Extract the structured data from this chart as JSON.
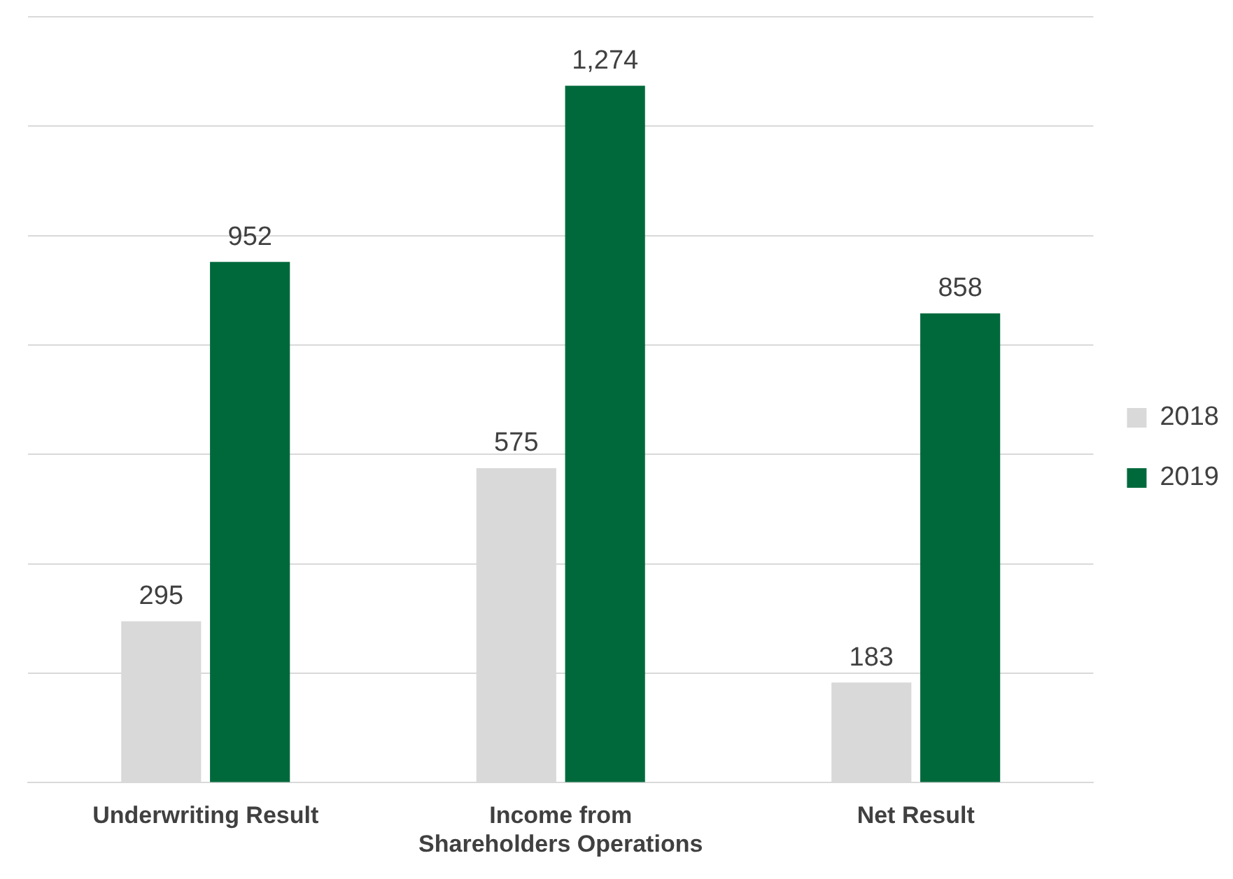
{
  "chart_data": {
    "type": "bar",
    "categories": [
      "Underwriting Result",
      "Income from Shareholders Operations",
      "Net Result"
    ],
    "series": [
      {
        "name": "2018",
        "color": "#d9d9d9",
        "values": [
          295,
          575,
          183
        ],
        "value_labels": [
          "295",
          "575",
          "183"
        ]
      },
      {
        "name": "2019",
        "color": "#00693c",
        "values": [
          952,
          1274,
          858
        ],
        "value_labels": [
          "952",
          "1,274",
          "858"
        ]
      }
    ],
    "ylim": [
      0,
      1400
    ],
    "yticks": [
      {
        "value": 0,
        "label": null
      },
      {
        "value": 200,
        "label": null
      },
      {
        "value": 400,
        "label": null
      },
      {
        "value": 600,
        "label": null
      },
      {
        "value": 800,
        "label": null
      },
      {
        "value": 1000,
        "label": null
      },
      {
        "value": 1200,
        "label": null
      },
      {
        "value": 1400,
        "label": null
      }
    ],
    "grid": "y",
    "legend": "right",
    "tick_labels": "x"
  }
}
